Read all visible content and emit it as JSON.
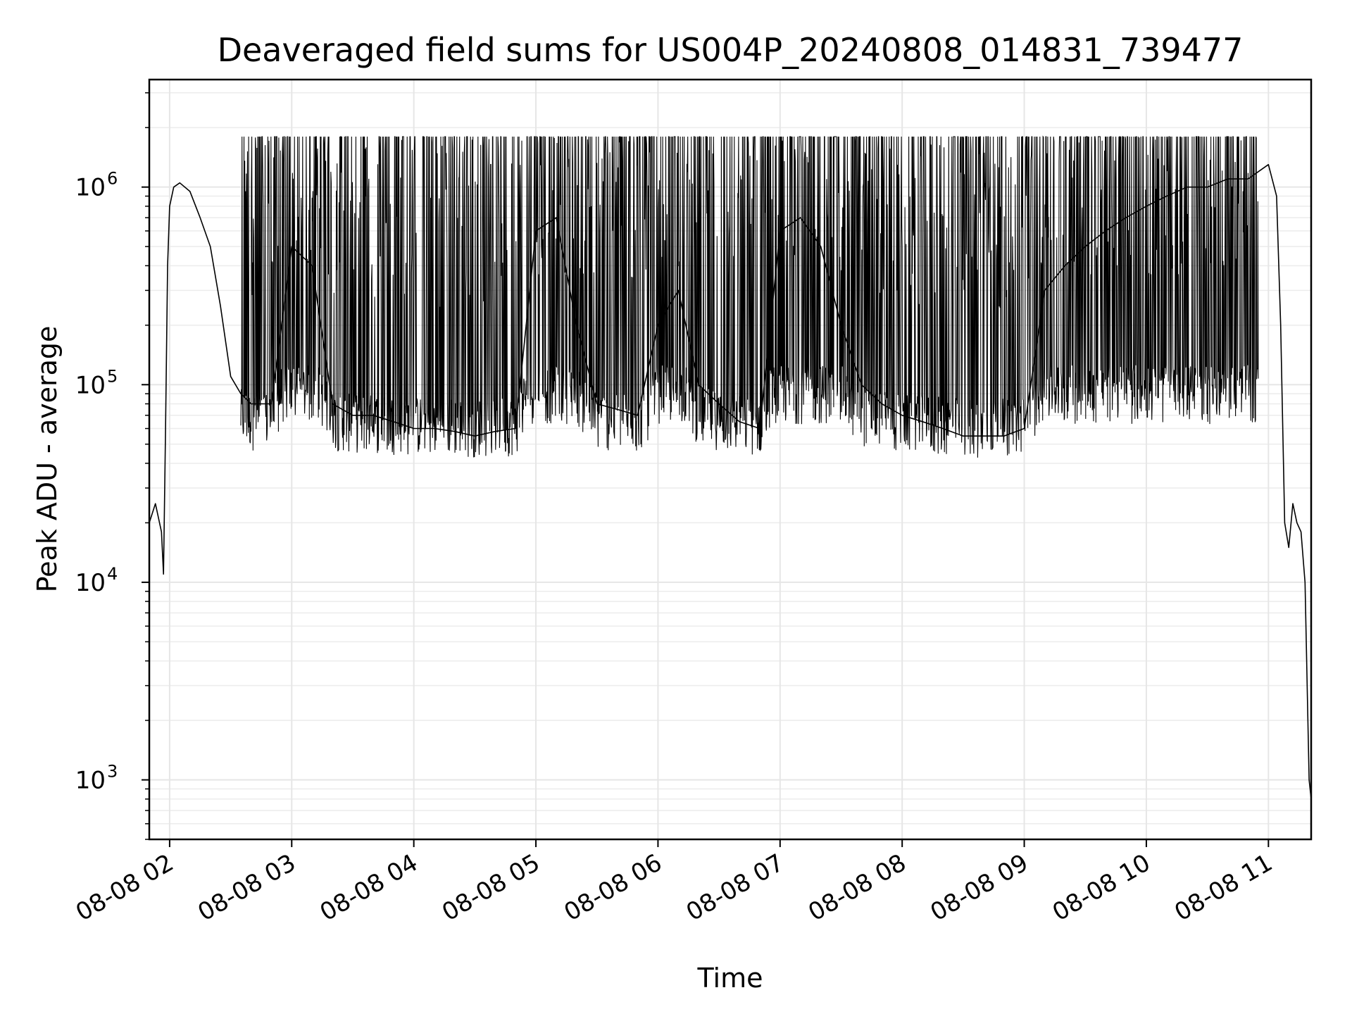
{
  "chart_data": {
    "type": "line",
    "title": "Deaveraged field sums for US004P_20240808_014831_739477",
    "xlabel": "Time",
    "ylabel": "Peak ADU - average",
    "y_scale": "log",
    "ylim": [
      500,
      3500000
    ],
    "xlim": [
      "2024-08-08 01:50",
      "2024-08-08 11:21"
    ],
    "grid": true,
    "line_color": "#000000",
    "x_ticks": [
      {
        "value": "2024-08-08 02:00",
        "label": "08-08 02"
      },
      {
        "value": "2024-08-08 03:00",
        "label": "08-08 03"
      },
      {
        "value": "2024-08-08 04:00",
        "label": "08-08 04"
      },
      {
        "value": "2024-08-08 05:00",
        "label": "08-08 05"
      },
      {
        "value": "2024-08-08 06:00",
        "label": "08-08 06"
      },
      {
        "value": "2024-08-08 07:00",
        "label": "08-08 07"
      },
      {
        "value": "2024-08-08 08:00",
        "label": "08-08 08"
      },
      {
        "value": "2024-08-08 09:00",
        "label": "08-08 09"
      },
      {
        "value": "2024-08-08 10:00",
        "label": "08-08 10"
      },
      {
        "value": "2024-08-08 11:00",
        "label": "08-08 11"
      }
    ],
    "y_ticks": [
      {
        "value": 1000,
        "base": "10",
        "exp": "3"
      },
      {
        "value": 10000,
        "base": "10",
        "exp": "4"
      },
      {
        "value": 100000,
        "base": "10",
        "exp": "5"
      },
      {
        "value": 1000000,
        "base": "10",
        "exp": "6"
      }
    ],
    "series": [
      {
        "x": [
          "2024-08-08 01:50",
          "2024-08-08 01:53",
          "2024-08-08 01:56",
          "2024-08-08 01:57",
          "2024-08-08 01:58",
          "2024-08-08 01:59",
          "2024-08-08 02:00",
          "2024-08-08 02:02",
          "2024-08-08 02:05",
          "2024-08-08 02:10",
          "2024-08-08 02:15",
          "2024-08-08 02:20",
          "2024-08-08 02:25",
          "2024-08-08 02:30",
          "2024-08-08 02:35",
          "2024-08-08 02:40",
          "2024-08-08 02:50",
          "2024-08-08 03:00",
          "2024-08-08 03:10",
          "2024-08-08 03:20",
          "2024-08-08 03:30",
          "2024-08-08 03:40",
          "2024-08-08 03:50",
          "2024-08-08 04:00",
          "2024-08-08 04:10",
          "2024-08-08 04:20",
          "2024-08-08 04:30",
          "2024-08-08 04:40",
          "2024-08-08 04:50",
          "2024-08-08 05:00",
          "2024-08-08 05:10",
          "2024-08-08 05:20",
          "2024-08-08 05:30",
          "2024-08-08 05:40",
          "2024-08-08 05:50",
          "2024-08-08 06:00",
          "2024-08-08 06:10",
          "2024-08-08 06:20",
          "2024-08-08 06:30",
          "2024-08-08 06:40",
          "2024-08-08 06:50",
          "2024-08-08 07:00",
          "2024-08-08 07:10",
          "2024-08-08 07:20",
          "2024-08-08 07:30",
          "2024-08-08 07:40",
          "2024-08-08 07:50",
          "2024-08-08 08:00",
          "2024-08-08 08:10",
          "2024-08-08 08:20",
          "2024-08-08 08:30",
          "2024-08-08 08:40",
          "2024-08-08 08:50",
          "2024-08-08 09:00",
          "2024-08-08 09:10",
          "2024-08-08 09:20",
          "2024-08-08 09:30",
          "2024-08-08 09:40",
          "2024-08-08 09:50",
          "2024-08-08 10:00",
          "2024-08-08 10:10",
          "2024-08-08 10:20",
          "2024-08-08 10:30",
          "2024-08-08 10:40",
          "2024-08-08 10:50",
          "2024-08-08 11:00",
          "2024-08-08 11:04",
          "2024-08-08 11:06",
          "2024-08-08 11:08",
          "2024-08-08 11:10",
          "2024-08-08 11:12",
          "2024-08-08 11:14",
          "2024-08-08 11:16",
          "2024-08-08 11:18",
          "2024-08-08 11:20",
          "2024-08-08 11:21"
        ],
        "y": [
          20000,
          25000,
          18000,
          11000,
          60000,
          400000,
          800000,
          1000000,
          1050000,
          950000,
          700000,
          500000,
          250000,
          110000,
          90000,
          80000,
          80000,
          500000,
          400000,
          80000,
          70000,
          70000,
          65000,
          60000,
          60000,
          58000,
          55000,
          58000,
          60000,
          600000,
          700000,
          200000,
          80000,
          75000,
          70000,
          200000,
          300000,
          100000,
          80000,
          65000,
          60000,
          600000,
          700000,
          500000,
          200000,
          100000,
          80000,
          70000,
          65000,
          60000,
          55000,
          55000,
          55000,
          60000,
          300000,
          400000,
          500000,
          600000,
          700000,
          800000,
          900000,
          1000000,
          1000000,
          1100000,
          1100000,
          1300000,
          900000,
          200000,
          20000,
          15000,
          25000,
          20000,
          18000,
          10000,
          1000,
          800
        ]
      }
    ]
  }
}
